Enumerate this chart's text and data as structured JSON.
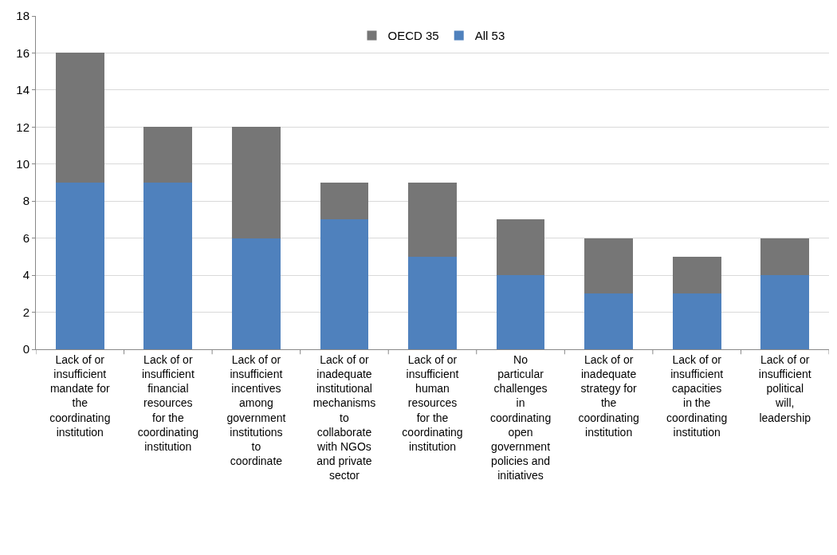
{
  "chart_data": {
    "type": "bar",
    "stacked": true,
    "categories": [
      "Lack of or insufficient mandate for the coordinating institution",
      "Lack of or insufficient financial resources for the coordinating institution",
      "Lack of or insufficient incentives among government institutions to coordinate",
      "Lack of or inadequate institutional mechanisms to collaborate with NGOs and private sector",
      "Lack of or insufficient human resources for the coordinating institution",
      "No particular challenges in coordinating open government policies and initiatives",
      "Lack of or inadequate strategy for the coordinating institution",
      "Lack of or insufficient capacities in the coordinating institution",
      "Lack of or insufficient political will, leadership"
    ],
    "series": [
      {
        "name": "All 53",
        "color": "#4f81bd",
        "values": [
          9,
          9,
          6,
          7,
          5,
          4,
          3,
          3,
          4
        ]
      },
      {
        "name": "OECD 35",
        "color": "#767676",
        "values": [
          7,
          3,
          6,
          2,
          4,
          3,
          3,
          2,
          2
        ]
      }
    ],
    "ylim": [
      0,
      18
    ],
    "yticks": [
      0,
      2,
      4,
      6,
      8,
      10,
      12,
      14,
      16,
      18
    ],
    "grid": "y",
    "legend": "top"
  }
}
